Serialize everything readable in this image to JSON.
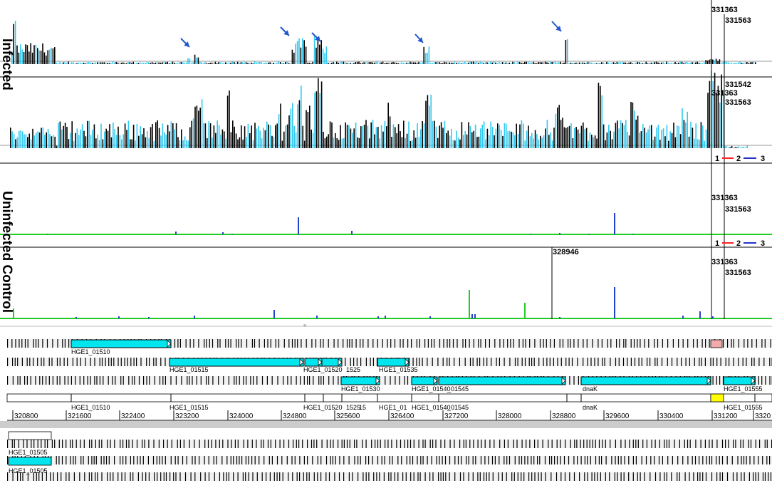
{
  "labels": {
    "infected": "Infected",
    "uninfected": "Uninfected Control"
  },
  "colors": {
    "forward": "#000000",
    "reverse": "#33c8ee",
    "frame1": "#ff0000",
    "frame2": "#2244cc",
    "frame3": "#0000cc",
    "baseline": "#22cc22",
    "gene": "#00e5ee",
    "arrow": "#2255cc",
    "highlight": "#ffff00",
    "pink": "#f4aaaa"
  },
  "coordinates": {
    "a": "331363",
    "b": "331563",
    "c": "331542",
    "d": "328946"
  },
  "frame_legend": {
    "items": [
      {
        "label": "1",
        "color": "#ff2222"
      },
      {
        "label": "2",
        "color": "#2233cc"
      },
      {
        "label": "3",
        "color": ""
      }
    ]
  },
  "genes": {
    "row1": [
      "HGE1_01510"
    ],
    "row2": [
      "HGE1_01515",
      "HGE1_01520",
      "1525",
      "HGE1_01535"
    ],
    "row3": [
      "HGE1_01530",
      "HGE1_01540",
      "_01545"
    ],
    "row4": [
      "HGE1_01510",
      "HGE1_01515",
      "HGE1_01520",
      "1525",
      "15",
      "HGE1_01",
      "HGE1_01540",
      "_01545",
      "dnaK",
      "HGE1_01555"
    ],
    "row4_labels_upper": [
      "dnaK",
      "HGE1_01555"
    ],
    "lower": [
      "HGE1_01505",
      "HGE1_01505"
    ]
  },
  "ruler": {
    "ticks": [
      "320800",
      "321600",
      "322400",
      "323200",
      "324000",
      "324800",
      "325600",
      "326400",
      "327200",
      "328000",
      "328800",
      "329600",
      "330400",
      "331200",
      "3320"
    ]
  },
  "arrows_count": 5
}
